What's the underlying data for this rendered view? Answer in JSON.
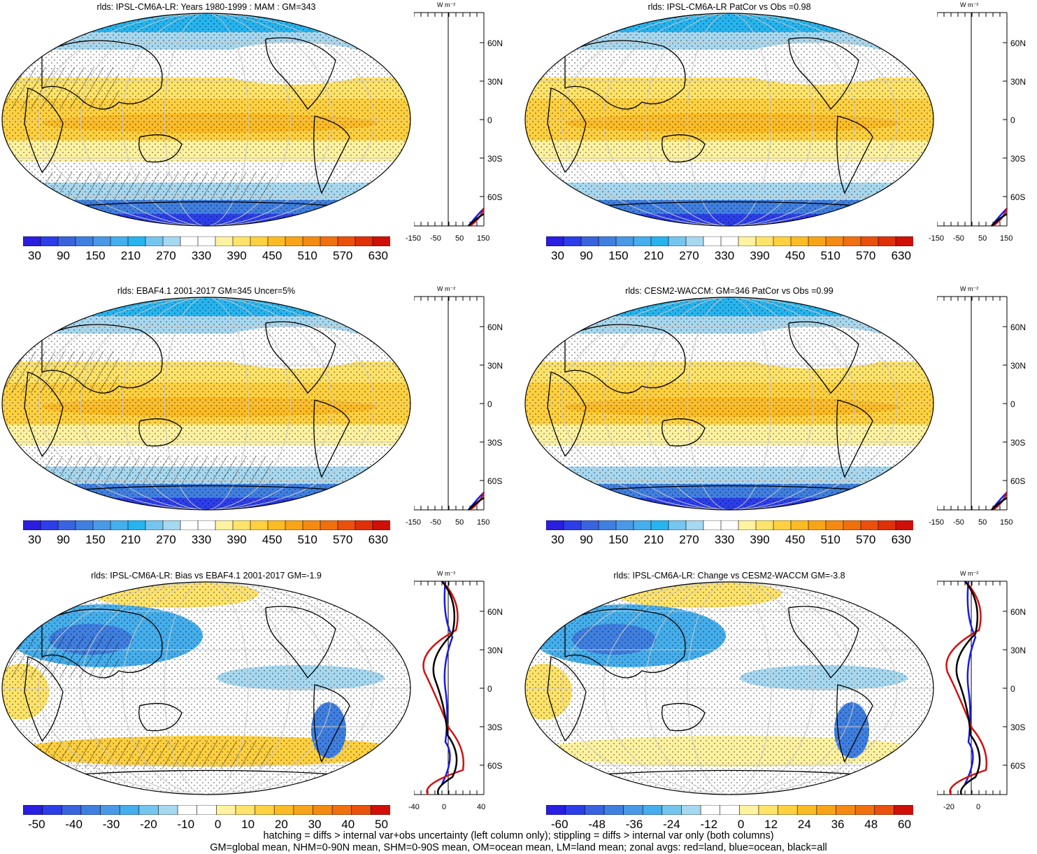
{
  "panels": [
    {
      "id": "p1",
      "title": "rlds: IPSL-CM6A-LR: Years 1980-1999 : MAM : GM=343",
      "colorbar": [
        "30",
        "90",
        "150",
        "210",
        "270",
        "330",
        "390",
        "450",
        "510",
        "570",
        "630"
      ],
      "profile_xticks": [
        "-150",
        "-50",
        "50",
        "150"
      ],
      "profile_unit": "W m⁻²",
      "lat_ticks": [
        "60N",
        "30N",
        "0",
        "30S",
        "60S"
      ],
      "kind": "abs",
      "hatch": true
    },
    {
      "id": "p2",
      "title": "rlds: IPSL-CM6A-LR PatCor vs Obs =0.98",
      "colorbar": [
        "30",
        "90",
        "150",
        "210",
        "270",
        "330",
        "390",
        "450",
        "510",
        "570",
        "630"
      ],
      "profile_xticks": [
        "-150",
        "-50",
        "50",
        "150"
      ],
      "profile_unit": "W m⁻²",
      "lat_ticks": [
        "60N",
        "30N",
        "0",
        "30S",
        "60S"
      ],
      "kind": "abs",
      "hatch": false
    },
    {
      "id": "p3",
      "title": "rlds: EBAF4.1 2001-2017 GM=345 Uncer=5%",
      "colorbar": [
        "30",
        "90",
        "150",
        "210",
        "270",
        "330",
        "390",
        "450",
        "510",
        "570",
        "630"
      ],
      "profile_xticks": [
        "-150",
        "-50",
        "50",
        "150"
      ],
      "profile_unit": "W m⁻²",
      "lat_ticks": [
        "60N",
        "30N",
        "0",
        "30S",
        "60S"
      ],
      "kind": "abs",
      "hatch": true
    },
    {
      "id": "p4",
      "title": "rlds: CESM2-WACCM: GM=346 PatCor vs Obs =0.99",
      "colorbar": [
        "30",
        "90",
        "150",
        "210",
        "270",
        "330",
        "390",
        "450",
        "510",
        "570",
        "630"
      ],
      "profile_xticks": [
        "-150",
        "-50",
        "50",
        "150"
      ],
      "profile_unit": "W m⁻²",
      "lat_ticks": [
        "60N",
        "30N",
        "0",
        "30S",
        "60S"
      ],
      "kind": "abs",
      "hatch": false
    },
    {
      "id": "p5",
      "title": "rlds: IPSL-CM6A-LR: Bias vs EBAF4.1 2001-2017 GM=-1.9",
      "colorbar": [
        "-50",
        "-40",
        "-30",
        "-20",
        "-10",
        "0",
        "10",
        "20",
        "30",
        "40",
        "50"
      ],
      "profile_xticks": [
        "-40",
        "0",
        "40"
      ],
      "profile_unit": "W m⁻²",
      "lat_ticks": [
        "60N",
        "30N",
        "0",
        "30S",
        "60S"
      ],
      "kind": "diff",
      "hatch": true
    },
    {
      "id": "p6",
      "title": "rlds: IPSL-CM6A-LR: Change vs CESM2-WACCM GM=-3.8",
      "colorbar": [
        "-60",
        "-48",
        "-36",
        "-24",
        "-12",
        "0",
        "12",
        "24",
        "36",
        "48",
        "60"
      ],
      "profile_xticks": [
        "-20",
        "0"
      ],
      "profile_unit": "W m⁻²",
      "lat_ticks": [
        "60N",
        "30N",
        "0",
        "30S",
        "60S"
      ],
      "kind": "diff",
      "hatch": false
    }
  ],
  "colors": {
    "abs_scale": [
      "#2a1ee0",
      "#2c3ee8",
      "#3a63e0",
      "#3f7fe0",
      "#4a99e6",
      "#45aeec",
      "#26b4ef",
      "#75c6ee",
      "#a6d8f0",
      "#ffffff",
      "#ffffff",
      "#fff2a0",
      "#ffe36a",
      "#ffd040",
      "#fbbb24",
      "#f8a418",
      "#f58a12",
      "#f0700e",
      "#ea500c",
      "#e0300a",
      "#d01008"
    ],
    "diff_scale": [
      "#2a1ee0",
      "#2c3ee8",
      "#3a63e0",
      "#3f7fe0",
      "#4a99e6",
      "#45aeec",
      "#75c6ee",
      "#a6d8f0",
      "#ffffff",
      "#ffffff",
      "#fff2a0",
      "#ffe36a",
      "#ffd040",
      "#fbbb24",
      "#f8a418",
      "#f58a12",
      "#f0700e",
      "#ea500c",
      "#d01008"
    ],
    "land_line": "#d11010",
    "ocean_line": "#1a1ae0",
    "all_line": "#000000"
  },
  "footer": [
    "hatching = diffs > internal var+obs uncertainty (left column only); stippling = diffs > internal var only (both columns)",
    "GM=global mean, NHM=0-90N mean, SHM=0-90S mean, OM=ocean mean, LM=land mean; zonal avgs: red=land, blue=ocean, black=all"
  ]
}
